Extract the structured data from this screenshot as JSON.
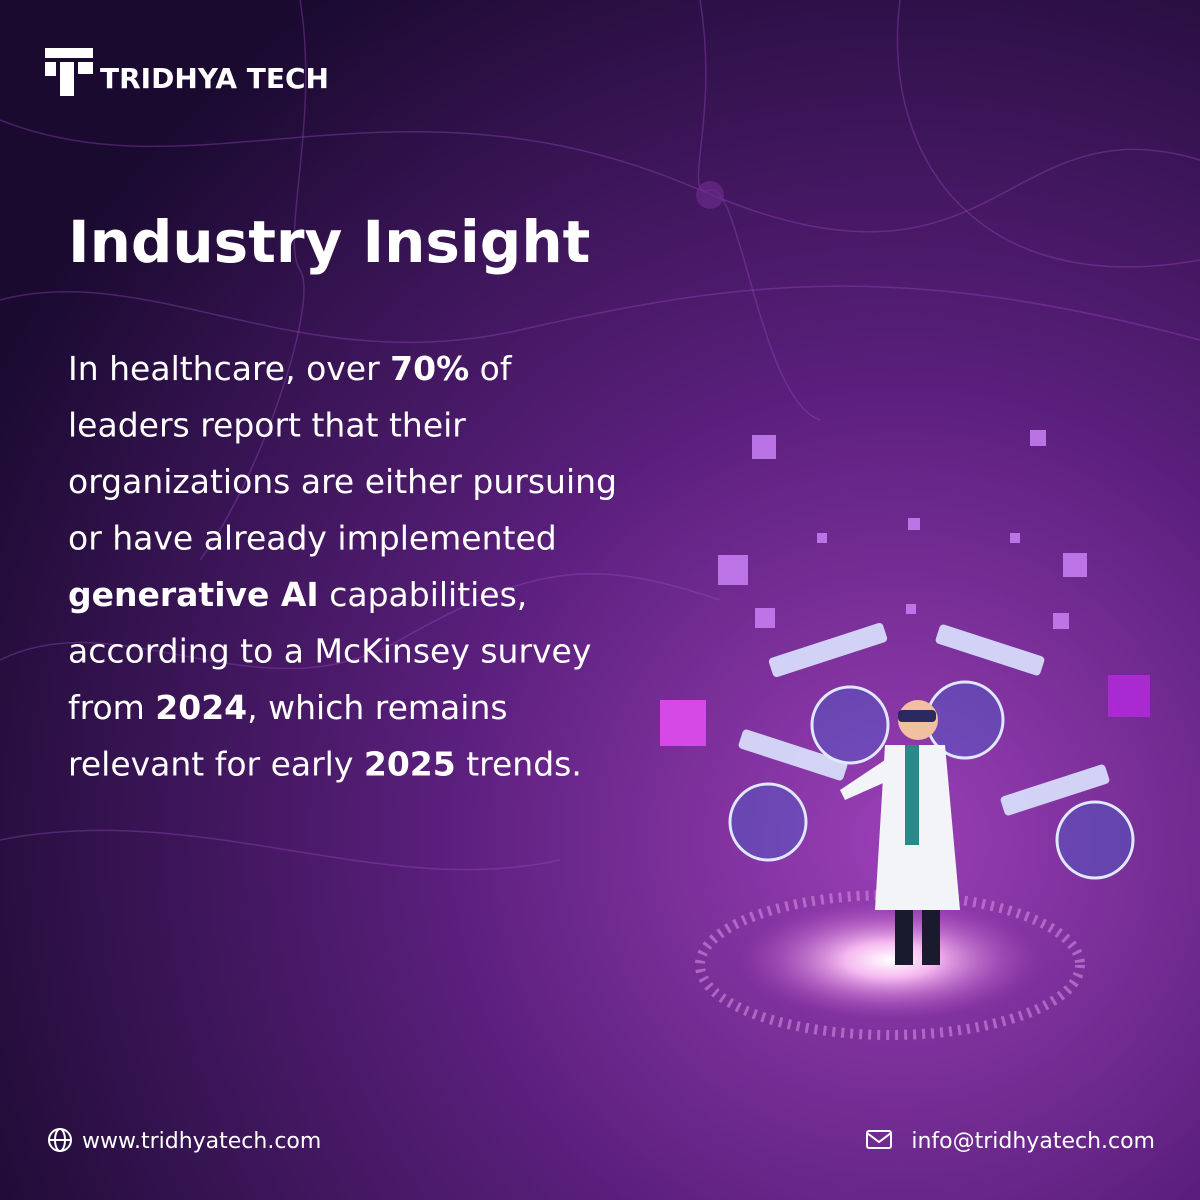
{
  "brand": {
    "name": "TRIDHYA TECH"
  },
  "title": "Industry Insight",
  "body": {
    "lines": [
      {
        "segments": [
          {
            "text": "In healthcare, over ",
            "bold": false
          },
          {
            "text": "70%",
            "bold": true
          },
          {
            "text": " of",
            "bold": false
          }
        ]
      },
      {
        "segments": [
          {
            "text": "leaders report that their",
            "bold": false
          }
        ]
      },
      {
        "segments": [
          {
            "text": "organizations are either pursuing",
            "bold": false
          }
        ]
      },
      {
        "segments": [
          {
            "text": "or have already implemented",
            "bold": false
          }
        ]
      },
      {
        "segments": [
          {
            "text": "generative AI",
            "bold": true
          },
          {
            "text": " capabilities,",
            "bold": false
          }
        ]
      },
      {
        "segments": [
          {
            "text": "according to a McKinsey survey",
            "bold": false
          }
        ]
      },
      {
        "segments": [
          {
            "text": "from ",
            "bold": false
          },
          {
            "text": "2024",
            "bold": true
          },
          {
            "text": ", which remains",
            "bold": false
          }
        ]
      },
      {
        "segments": [
          {
            "text": "relevant for early ",
            "bold": false
          },
          {
            "text": "2025",
            "bold": true
          },
          {
            "text": " trends.",
            "bold": false
          }
        ]
      }
    ]
  },
  "footer": {
    "website": "www.tridhyatech.com",
    "email": "info@tridhyatech.com"
  }
}
